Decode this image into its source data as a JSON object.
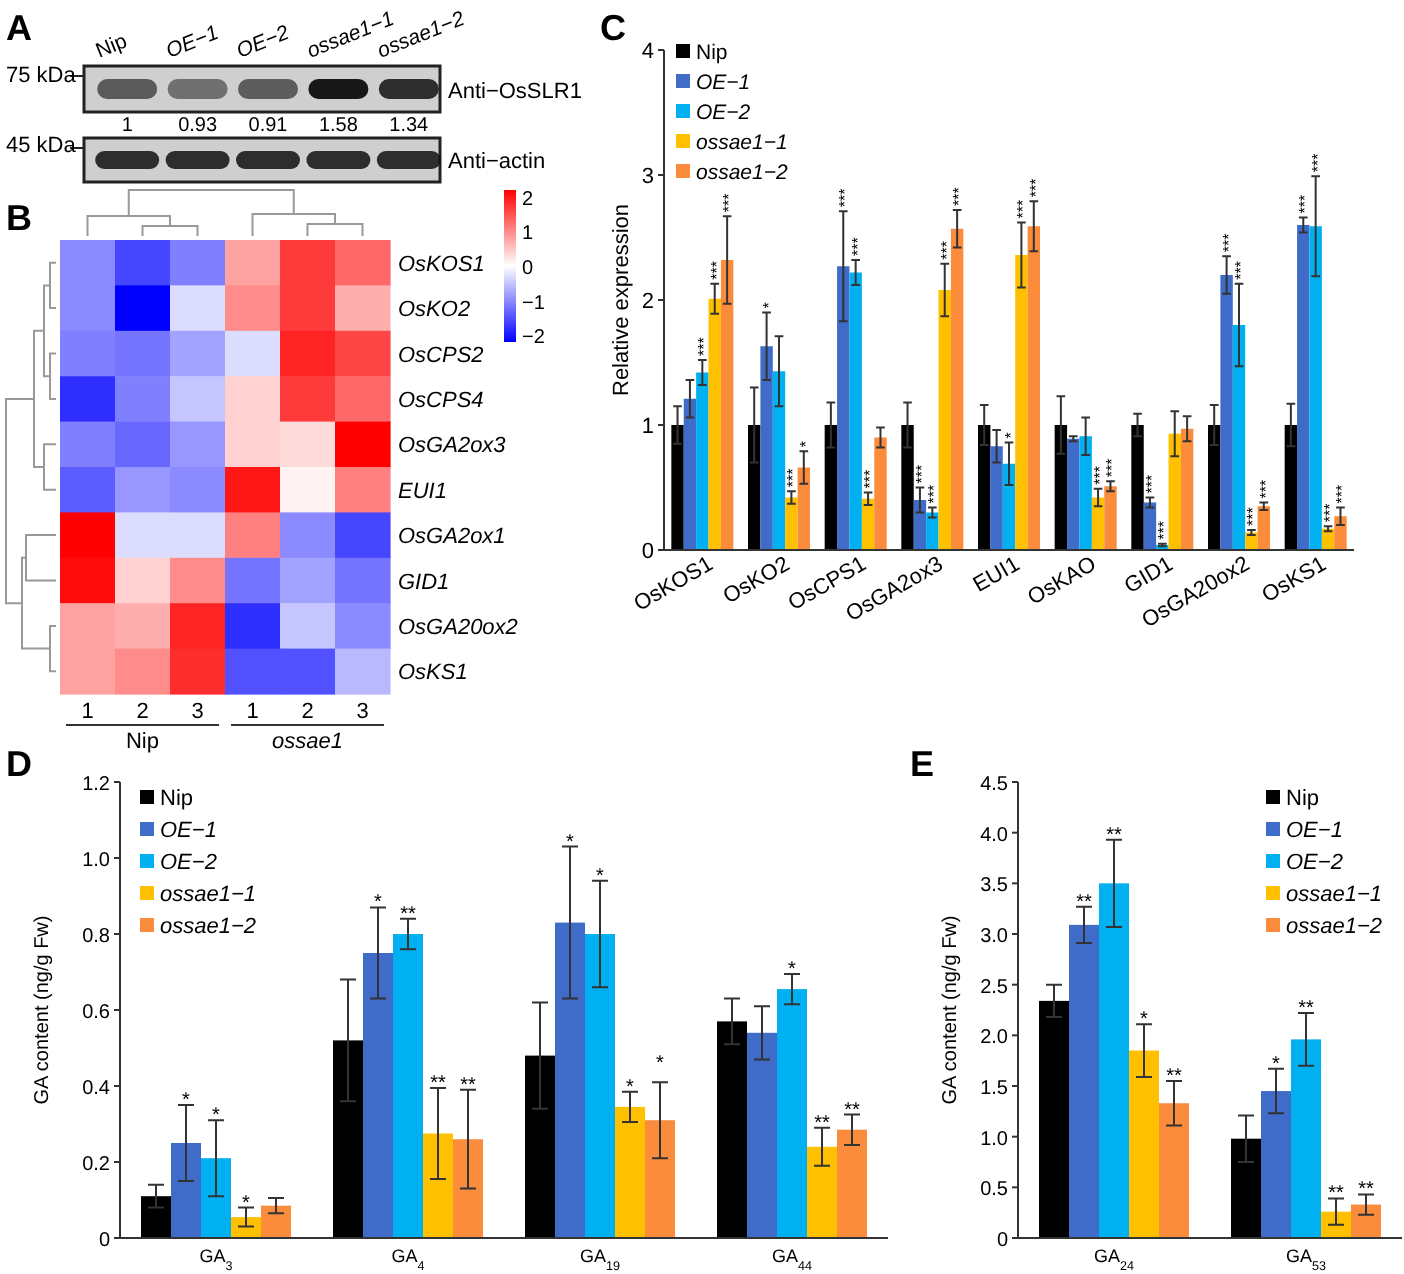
{
  "chart_data": [
    {
      "type": "other",
      "title": "A",
      "categories": [
        "Nip",
        "OE−1",
        "OE−2",
        "ossae1−1",
        "ossae1−2"
      ],
      "values": [
        1,
        0.93,
        0.91,
        1.58,
        1.34
      ],
      "data_labels": true,
      "annotations": [
        "75 kDa",
        "Anti−OsSLR1",
        "45 kDa",
        "Anti−actin"
      ]
    },
    {
      "type": "heatmap",
      "title": "B",
      "categories": [
        "1",
        "2",
        "3",
        "1",
        "2",
        "3"
      ],
      "y_categories": [
        "OsKOS1",
        "OsKO2",
        "OsCPS2",
        "OsCPS4",
        "OsGA2ox3",
        "EUI1",
        "OsGA2ox1",
        "GID1",
        "OsGA20ox2",
        "OsKS1"
      ],
      "cells": [
        [
          -1,
          -1.6,
          -1.1,
          0.8,
          1.7,
          1.3
        ],
        [
          -1,
          -2.2,
          -0.3,
          1,
          1.7,
          0.7
        ],
        [
          -1.1,
          -1.2,
          -0.8,
          -0.3,
          1.9,
          1.6
        ],
        [
          -1.8,
          -1.1,
          -0.5,
          0.4,
          1.7,
          1.3
        ],
        [
          -1.1,
          -1.3,
          -0.9,
          0.4,
          0.3,
          2.2
        ],
        [
          -1.4,
          -0.9,
          -1,
          2,
          0.1,
          1.1
        ],
        [
          2.2,
          -0.3,
          -0.3,
          1.1,
          -1,
          -1.6
        ],
        [
          2.1,
          0.4,
          1,
          -1.2,
          -0.8,
          -1.2
        ],
        [
          0.8,
          0.7,
          1.9,
          -1.8,
          -0.5,
          -1
        ],
        [
          0.8,
          1,
          1.8,
          -1.5,
          -1.5,
          -0.6
        ]
      ],
      "clim": [
        -2.2,
        2.2
      ],
      "cticks": [
        2,
        1,
        0,
        {
          "value": -1,
          "label": "−1"
        },
        {
          "value": -2,
          "label": "−2"
        }
      ],
      "annotations": [
        "Nip",
        "ossae1"
      ]
    },
    {
      "type": "bar",
      "title": "C",
      "ylabel": "Relative expression",
      "categories": [
        "OsKOS1",
        "OsKO2",
        "OsCPS1",
        "OsGA2ox3",
        "EUI1",
        "OsKAO",
        "GID1",
        "OsGA20ox2",
        "OsKS1"
      ],
      "ylim": [
        0,
        4
      ],
      "yticks": [
        0,
        1,
        2,
        3,
        4
      ],
      "legend": "top left",
      "series": [
        {
          "name": "Nip",
          "color": "#000000",
          "values": [
            1,
            1,
            1,
            1,
            1,
            1,
            1,
            1,
            1
          ],
          "errors": [
            0.15,
            0.3,
            0.18,
            0.18,
            0.16,
            0.23,
            0.09,
            0.16,
            0.17
          ]
        },
        {
          "name": "OE−1",
          "color": "#3f6bc9",
          "values": [
            1.21,
            1.63,
            2.27,
            0.4,
            0.83,
            0.89,
            0.38,
            2.2,
            2.6
          ],
          "errors": [
            0.15,
            0.27,
            0.44,
            0.1,
            0.13,
            0.02,
            0.04,
            0.15,
            0.06
          ]
        },
        {
          "name": "OE−2",
          "color": "#00b0f0",
          "values": [
            1.42,
            1.43,
            2.22,
            0.3,
            0.69,
            0.91,
            0.04,
            1.8,
            2.59
          ],
          "errors": [
            0.1,
            0.28,
            0.1,
            0.04,
            0.17,
            0.15,
            0.01,
            0.33,
            0.4
          ]
        },
        {
          "name": "ossae1−1",
          "color": "#ffc000",
          "values": [
            2.01,
            0.42,
            0.41,
            2.08,
            2.36,
            0.42,
            0.93,
            0.14,
            0.17
          ],
          "errors": [
            0.12,
            0.05,
            0.05,
            0.21,
            0.26,
            0.07,
            0.18,
            0.02,
            0.02
          ]
        },
        {
          "name": "ossae1−2",
          "color": "#fb8c3c",
          "values": [
            2.32,
            0.66,
            0.9,
            2.57,
            2.59,
            0.51,
            0.97,
            0.35,
            0.27
          ],
          "errors": [
            0.35,
            0.13,
            0.08,
            0.15,
            0.2,
            0.04,
            0.1,
            0.03,
            0.07
          ]
        }
      ],
      "annotations": [
        "***",
        "***",
        "***",
        "*",
        "***",
        "*",
        "***",
        "***",
        "***",
        "***",
        "***",
        "***",
        "***",
        "*",
        "***",
        "***",
        "***",
        "***",
        "***",
        "***",
        "***",
        "***",
        "***",
        "***",
        "***",
        "***",
        "***",
        "***"
      ]
    },
    {
      "type": "bar",
      "title": "D",
      "ylabel": "GA content (ng/g Fw)",
      "categories": [
        "GA$_{3}$",
        "GA$_{4}$",
        "GA$_{19}$",
        "GA$_{44}$"
      ],
      "ylim": [
        0,
        1.2
      ],
      "yticks": [
        0,
        0.2,
        0.4,
        0.6,
        0.8,
        {
          "value": 1,
          "label": "1.0"
        },
        1.2
      ],
      "legend": "top left",
      "series": [
        {
          "name": "Nip",
          "color": "#000000",
          "values": [
            0.11,
            0.52,
            0.48,
            0.57
          ],
          "errors": [
            0.03,
            0.16,
            0.14,
            0.06
          ]
        },
        {
          "name": "OE−1",
          "color": "#3f6bc9",
          "values": [
            0.25,
            0.75,
            0.83,
            0.54
          ],
          "errors": [
            0.1,
            0.12,
            0.2,
            0.07
          ]
        },
        {
          "name": "OE−2",
          "color": "#00b0f0",
          "values": [
            0.21,
            0.8,
            0.8,
            0.655
          ],
          "errors": [
            0.1,
            0.04,
            0.14,
            0.04
          ]
        },
        {
          "name": "ossae1−1",
          "color": "#ffc000",
          "values": [
            0.055,
            0.275,
            0.345,
            0.24
          ],
          "errors": [
            0.025,
            0.12,
            0.04,
            0.05
          ]
        },
        {
          "name": "ossae1−2",
          "color": "#fb8c3c",
          "values": [
            0.085,
            0.26,
            0.31,
            0.285
          ],
          "errors": [
            0.02,
            0.13,
            0.1,
            0.04
          ]
        }
      ],
      "annotations": [
        "*",
        "*",
        "*",
        "*",
        "**",
        "**",
        "**",
        "*",
        "*",
        "*",
        "*",
        "*",
        "**",
        "**"
      ]
    },
    {
      "type": "bar",
      "title": "E",
      "ylabel": "GA content (ng/g Fw)",
      "categories": [
        "GA$_{24}$",
        "GA$_{53}$"
      ],
      "ylim": [
        0,
        4.5
      ],
      "yticks": [
        0,
        0.5,
        {
          "value": 1,
          "label": "1.0"
        },
        1.5,
        {
          "value": 2,
          "label": "2.0"
        },
        2.5,
        {
          "value": 3,
          "label": "3.0"
        },
        3.5,
        {
          "value": 4,
          "label": "4.0"
        },
        4.5
      ],
      "legend": "top right",
      "series": [
        {
          "name": "Nip",
          "color": "#000000",
          "values": [
            2.34,
            0.98
          ],
          "errors": [
            0.16,
            0.23
          ]
        },
        {
          "name": "OE−1",
          "color": "#3f6bc9",
          "values": [
            3.09,
            1.45
          ],
          "errors": [
            0.18,
            0.22
          ]
        },
        {
          "name": "OE−2",
          "color": "#00b0f0",
          "values": [
            3.5,
            1.96
          ],
          "errors": [
            0.43,
            0.26
          ]
        },
        {
          "name": "ossae1−1",
          "color": "#ffc000",
          "values": [
            1.85,
            0.26
          ],
          "errors": [
            0.26,
            0.13
          ]
        },
        {
          "name": "ossae1−2",
          "color": "#fb8c3c",
          "values": [
            1.33,
            0.33
          ],
          "errors": [
            0.22,
            0.1
          ]
        }
      ],
      "annotations": [
        "**",
        "**",
        "*",
        "**",
        "*",
        "**",
        "**",
        "**"
      ]
    }
  ]
}
